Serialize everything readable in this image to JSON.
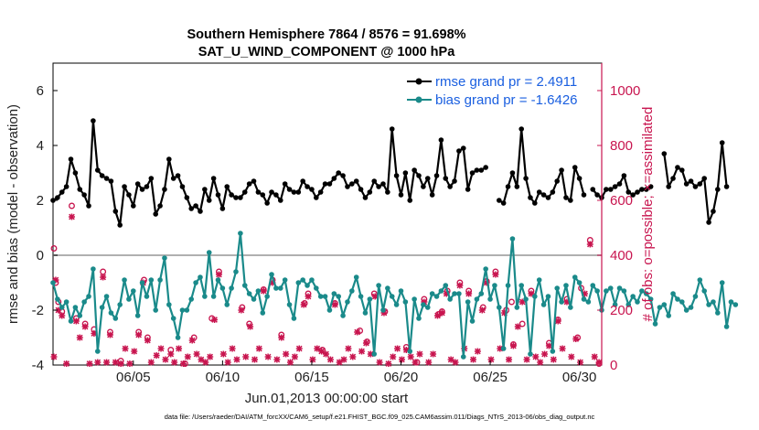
{
  "chart_data": {
    "type": "line",
    "title": "Southern Hemisphere 7864 / 8576 = 91.698%",
    "subtitle": "SAT_U_WIND_COMPONENT @ 1000 hPa",
    "xlabel": "Jun.01,2013 00:00:00 start",
    "ylabel": "rmse and bias (model - observation)",
    "ylabel_right": "# of obs: o=possible; ×=assimilated",
    "footnote": "data file: /Users/raeder/DAI/ATM_forcXX/CAM6_setup/f.e21.FHIST_BGC.f09_025.CAM6assim.011/Diags_NTrS_2013-06/obs_diag_output.nc",
    "xlim": [
      0.5,
      31.25
    ],
    "ylim": [
      -4,
      7
    ],
    "ylim_right": [
      0,
      1100
    ],
    "x_tick_labels": [
      "06/05",
      "06/10",
      "06/15",
      "06/20",
      "06/25",
      "06/30"
    ],
    "x_tick_values": [
      5,
      10,
      15,
      20,
      25,
      30
    ],
    "y_ticks": [
      -4,
      -2,
      0,
      2,
      4,
      6
    ],
    "y_ticks_right": [
      0,
      200,
      400,
      600,
      800,
      1000
    ],
    "zero_line": 0,
    "grid": false,
    "legend_position": "top-right",
    "x_step": 0.25,
    "x_start": 0.5,
    "series": [
      {
        "name": "rmse grand pr = 2.4911",
        "color": "#000000",
        "values": [
          2.0,
          2.1,
          2.3,
          2.5,
          3.5,
          3.0,
          2.4,
          2.2,
          1.8,
          4.9,
          3.1,
          2.9,
          2.8,
          2.7,
          1.6,
          1.1,
          2.5,
          2.2,
          1.8,
          2.6,
          2.4,
          2.5,
          2.8,
          1.5,
          1.8,
          2.4,
          3.5,
          2.8,
          2.9,
          2.5,
          2.1,
          1.7,
          1.8,
          1.6,
          2.4,
          2.0,
          2.8,
          2.2,
          1.7,
          2.5,
          2.2,
          2.1,
          2.1,
          2.3,
          2.6,
          2.7,
          2.3,
          2.2,
          1.9,
          2.3,
          2.2,
          2.0,
          2.6,
          2.4,
          2.3,
          2.3,
          2.7,
          2.5,
          2.4,
          2.1,
          2.3,
          2.6,
          2.6,
          2.8,
          3.0,
          2.9,
          2.5,
          2.6,
          2.7,
          2.4,
          2.1,
          2.3,
          2.7,
          2.5,
          2.6,
          2.3,
          4.6,
          2.9,
          2.2,
          3.0,
          2.0,
          3.1,
          2.9,
          2.5,
          2.8,
          2.2,
          2.9,
          4.2,
          2.8,
          2.5,
          2.7,
          3.8,
          3.9,
          2.4,
          3.0,
          3.1,
          3.1,
          3.2,
          null,
          null,
          2.0,
          1.9,
          2.5,
          3.0,
          2.5,
          4.6,
          2.8,
          2.1,
          1.9,
          2.3,
          2.2,
          2.1,
          2.3,
          2.7,
          3.1,
          2.1,
          2.0,
          3.2,
          2.8,
          2.2,
          null,
          2.4,
          2.2,
          2.1,
          2.4,
          2.4,
          2.5,
          2.6,
          2.9,
          2.3,
          2.2,
          2.3,
          2.4,
          2.4,
          2.5,
          null,
          null,
          3.7,
          2.5,
          2.8,
          3.2,
          3.1,
          2.6,
          2.7,
          2.5,
          2.6,
          2.8,
          1.2,
          1.6,
          2.4,
          4.1,
          2.5
        ]
      },
      {
        "name": "bias grand pr = -1.6426",
        "color": "#1a8a8a",
        "values": [
          -1.0,
          -1.6,
          -1.9,
          -1.7,
          -2.4,
          -1.9,
          -2.2,
          -1.7,
          -1.5,
          -0.5,
          -3.5,
          -1.9,
          -1.5,
          -2.1,
          -2.3,
          -1.8,
          -0.9,
          -1.6,
          -1.3,
          -2.2,
          -1.0,
          -1.5,
          -0.9,
          -2.0,
          -0.9,
          -0.1,
          -1.8,
          -2.3,
          -3.0,
          -2.0,
          -2.0,
          -1.6,
          -1.0,
          -0.8,
          -1.5,
          0.1,
          -1.5,
          -0.9,
          -1.2,
          -1.8,
          -1.2,
          -0.6,
          0.8,
          -1.1,
          -1.4,
          -1.6,
          -1.3,
          -2.1,
          -1.5,
          -0.7,
          -1.2,
          -1.2,
          -0.9,
          -1.8,
          -2.3,
          -1.0,
          -0.9,
          -1.1,
          -0.9,
          -1.2,
          -1.5,
          -1.5,
          -2.0,
          -1.4,
          -1.5,
          -2.2,
          -1.7,
          -1.3,
          -0.8,
          -1.5,
          -2.1,
          -1.6,
          -3.6,
          -1.1,
          -2.0,
          -1.2,
          -1.5,
          -1.8,
          -1.3,
          -1.7,
          -3.5,
          -1.6,
          -2.3,
          -1.8,
          -1.9,
          -1.4,
          -1.5,
          -1.3,
          -1.1,
          -1.6,
          -1.4,
          -1.4,
          -3.7,
          -1.7,
          -2.4,
          -1.6,
          -1.4,
          -0.5,
          -1.6,
          -1.1,
          -1.9,
          -3.4,
          -1.1,
          0.6,
          -1.9,
          -1.1,
          -1.6,
          -3.6,
          -1.5,
          -0.9,
          -1.8,
          -1.5,
          -3.5,
          -1.2,
          -1.7,
          -1.1,
          -1.9,
          -0.8,
          -1.0,
          -1.6,
          -1.7,
          -1.1,
          -1.3,
          -2.0,
          -1.3,
          -1.2,
          -1.8,
          -1.2,
          -1.3,
          -1.8,
          -1.5,
          -1.7,
          -1.3,
          -1.4,
          -1.6,
          -2.5,
          -1.9,
          -1.8,
          -2.2,
          -1.4,
          -1.6,
          -1.7,
          -2.0,
          -1.9,
          -1.5,
          -0.9,
          -1.3,
          -1.8,
          -1.7,
          -2.1,
          -1.0,
          -2.6,
          -1.7,
          -1.8
        ]
      }
    ],
    "obs_possible": {
      "name": "possible",
      "color": "#c8154f",
      "points": [
        [
          0.55,
          425
        ],
        [
          0.65,
          300
        ],
        [
          0.8,
          230
        ],
        [
          1.0,
          195
        ],
        [
          1.55,
          580
        ],
        [
          1.8,
          170
        ],
        [
          2.3,
          150
        ],
        [
          2.8,
          130
        ],
        [
          3.3,
          340
        ],
        [
          3.7,
          120
        ],
        [
          4.3,
          15
        ],
        [
          5.3,
          120
        ],
        [
          5.6,
          310
        ],
        [
          5.8,
          100
        ],
        [
          7.1,
          55
        ],
        [
          7.9,
          5
        ],
        [
          8.4,
          100
        ],
        [
          9.4,
          170
        ],
        [
          9.8,
          340
        ],
        [
          11.1,
          210
        ],
        [
          11.5,
          150
        ],
        [
          12.3,
          275
        ],
        [
          12.8,
          310
        ],
        [
          13.3,
          110
        ],
        [
          14.6,
          225
        ],
        [
          14.8,
          260
        ],
        [
          15.6,
          55
        ],
        [
          16.3,
          225
        ],
        [
          17.7,
          125
        ],
        [
          18.1,
          85
        ],
        [
          18.5,
          260
        ],
        [
          19.1,
          195
        ],
        [
          20.3,
          65
        ],
        [
          20.9,
          10
        ],
        [
          21.3,
          240
        ],
        [
          22.1,
          185
        ],
        [
          22.3,
          195
        ],
        [
          22.6,
          270
        ],
        [
          23.3,
          300
        ],
        [
          23.8,
          270
        ],
        [
          24.6,
          210
        ],
        [
          24.8,
          305
        ],
        [
          25.3,
          340
        ],
        [
          25.9,
          200
        ],
        [
          26.2,
          230
        ],
        [
          26.3,
          75
        ],
        [
          26.8,
          150
        ],
        [
          27.3,
          270
        ],
        [
          28.3,
          80
        ],
        [
          28.8,
          165
        ],
        [
          29.3,
          240
        ],
        [
          29.9,
          100
        ],
        [
          30.1,
          280
        ],
        [
          30.6,
          455
        ],
        [
          31.1,
          5
        ]
      ]
    },
    "obs_assimilated": {
      "name": "assimilated",
      "color": "#c8154f",
      "points": [
        [
          0.55,
          30
        ],
        [
          0.65,
          310
        ],
        [
          0.8,
          200
        ],
        [
          1.0,
          180
        ],
        [
          1.25,
          5
        ],
        [
          1.55,
          540
        ],
        [
          1.8,
          160
        ],
        [
          2.0,
          100
        ],
        [
          2.3,
          140
        ],
        [
          2.55,
          5
        ],
        [
          2.8,
          115
        ],
        [
          3.0,
          10
        ],
        [
          3.3,
          320
        ],
        [
          3.5,
          10
        ],
        [
          3.7,
          110
        ],
        [
          4.0,
          10
        ],
        [
          4.3,
          5
        ],
        [
          4.55,
          60
        ],
        [
          4.8,
          5
        ],
        [
          5.05,
          50
        ],
        [
          5.3,
          110
        ],
        [
          5.55,
          300
        ],
        [
          5.8,
          90
        ],
        [
          6.0,
          10
        ],
        [
          6.3,
          35
        ],
        [
          6.55,
          60
        ],
        [
          6.8,
          20
        ],
        [
          7.1,
          40
        ],
        [
          7.3,
          10
        ],
        [
          7.55,
          60
        ],
        [
          7.8,
          5
        ],
        [
          8.05,
          30
        ],
        [
          8.3,
          90
        ],
        [
          8.55,
          40
        ],
        [
          8.8,
          20
        ],
        [
          9.05,
          10
        ],
        [
          9.3,
          30
        ],
        [
          9.55,
          165
        ],
        [
          9.8,
          330
        ],
        [
          10.05,
          40
        ],
        [
          10.3,
          10
        ],
        [
          10.55,
          60
        ],
        [
          10.8,
          20
        ],
        [
          11.05,
          200
        ],
        [
          11.3,
          30
        ],
        [
          11.55,
          140
        ],
        [
          11.8,
          20
        ],
        [
          12.05,
          60
        ],
        [
          12.3,
          270
        ],
        [
          12.55,
          30
        ],
        [
          12.8,
          300
        ],
        [
          13.05,
          20
        ],
        [
          13.3,
          100
        ],
        [
          13.55,
          40
        ],
        [
          13.8,
          10
        ],
        [
          14.05,
          30
        ],
        [
          14.3,
          60
        ],
        [
          14.55,
          220
        ],
        [
          14.8,
          250
        ],
        [
          15.05,
          20
        ],
        [
          15.3,
          60
        ],
        [
          15.55,
          50
        ],
        [
          15.8,
          40
        ],
        [
          16.05,
          20
        ],
        [
          16.3,
          220
        ],
        [
          16.55,
          10
        ],
        [
          16.8,
          20
        ],
        [
          17.05,
          60
        ],
        [
          17.3,
          30
        ],
        [
          17.55,
          120
        ],
        [
          17.8,
          50
        ],
        [
          18.05,
          80
        ],
        [
          18.3,
          40
        ],
        [
          18.55,
          250
        ],
        [
          18.8,
          10
        ],
        [
          19.05,
          190
        ],
        [
          19.3,
          5
        ],
        [
          19.55,
          30
        ],
        [
          19.8,
          60
        ],
        [
          20.05,
          20
        ],
        [
          20.3,
          55
        ],
        [
          20.55,
          30
        ],
        [
          20.8,
          10
        ],
        [
          21.05,
          40
        ],
        [
          21.3,
          230
        ],
        [
          21.55,
          10
        ],
        [
          21.8,
          40
        ],
        [
          22.05,
          180
        ],
        [
          22.3,
          190
        ],
        [
          22.55,
          260
        ],
        [
          22.8,
          20
        ],
        [
          23.05,
          10
        ],
        [
          23.3,
          290
        ],
        [
          23.55,
          60
        ],
        [
          23.8,
          260
        ],
        [
          24.05,
          20
        ],
        [
          24.3,
          50
        ],
        [
          24.55,
          200
        ],
        [
          24.8,
          300
        ],
        [
          25.05,
          20
        ],
        [
          25.3,
          330
        ],
        [
          25.55,
          60
        ],
        [
          25.8,
          190
        ],
        [
          26.05,
          20
        ],
        [
          26.3,
          70
        ],
        [
          26.55,
          140
        ],
        [
          26.8,
          230
        ],
        [
          27.05,
          20
        ],
        [
          27.3,
          260
        ],
        [
          27.55,
          30
        ],
        [
          27.8,
          10
        ],
        [
          28.05,
          40
        ],
        [
          28.3,
          70
        ],
        [
          28.55,
          20
        ],
        [
          28.8,
          160
        ],
        [
          29.05,
          60
        ],
        [
          29.3,
          230
        ],
        [
          29.55,
          30
        ],
        [
          29.8,
          95
        ],
        [
          30.05,
          10
        ],
        [
          30.3,
          260
        ],
        [
          30.6,
          440
        ],
        [
          30.85,
          30
        ],
        [
          31.1,
          10
        ]
      ]
    }
  }
}
